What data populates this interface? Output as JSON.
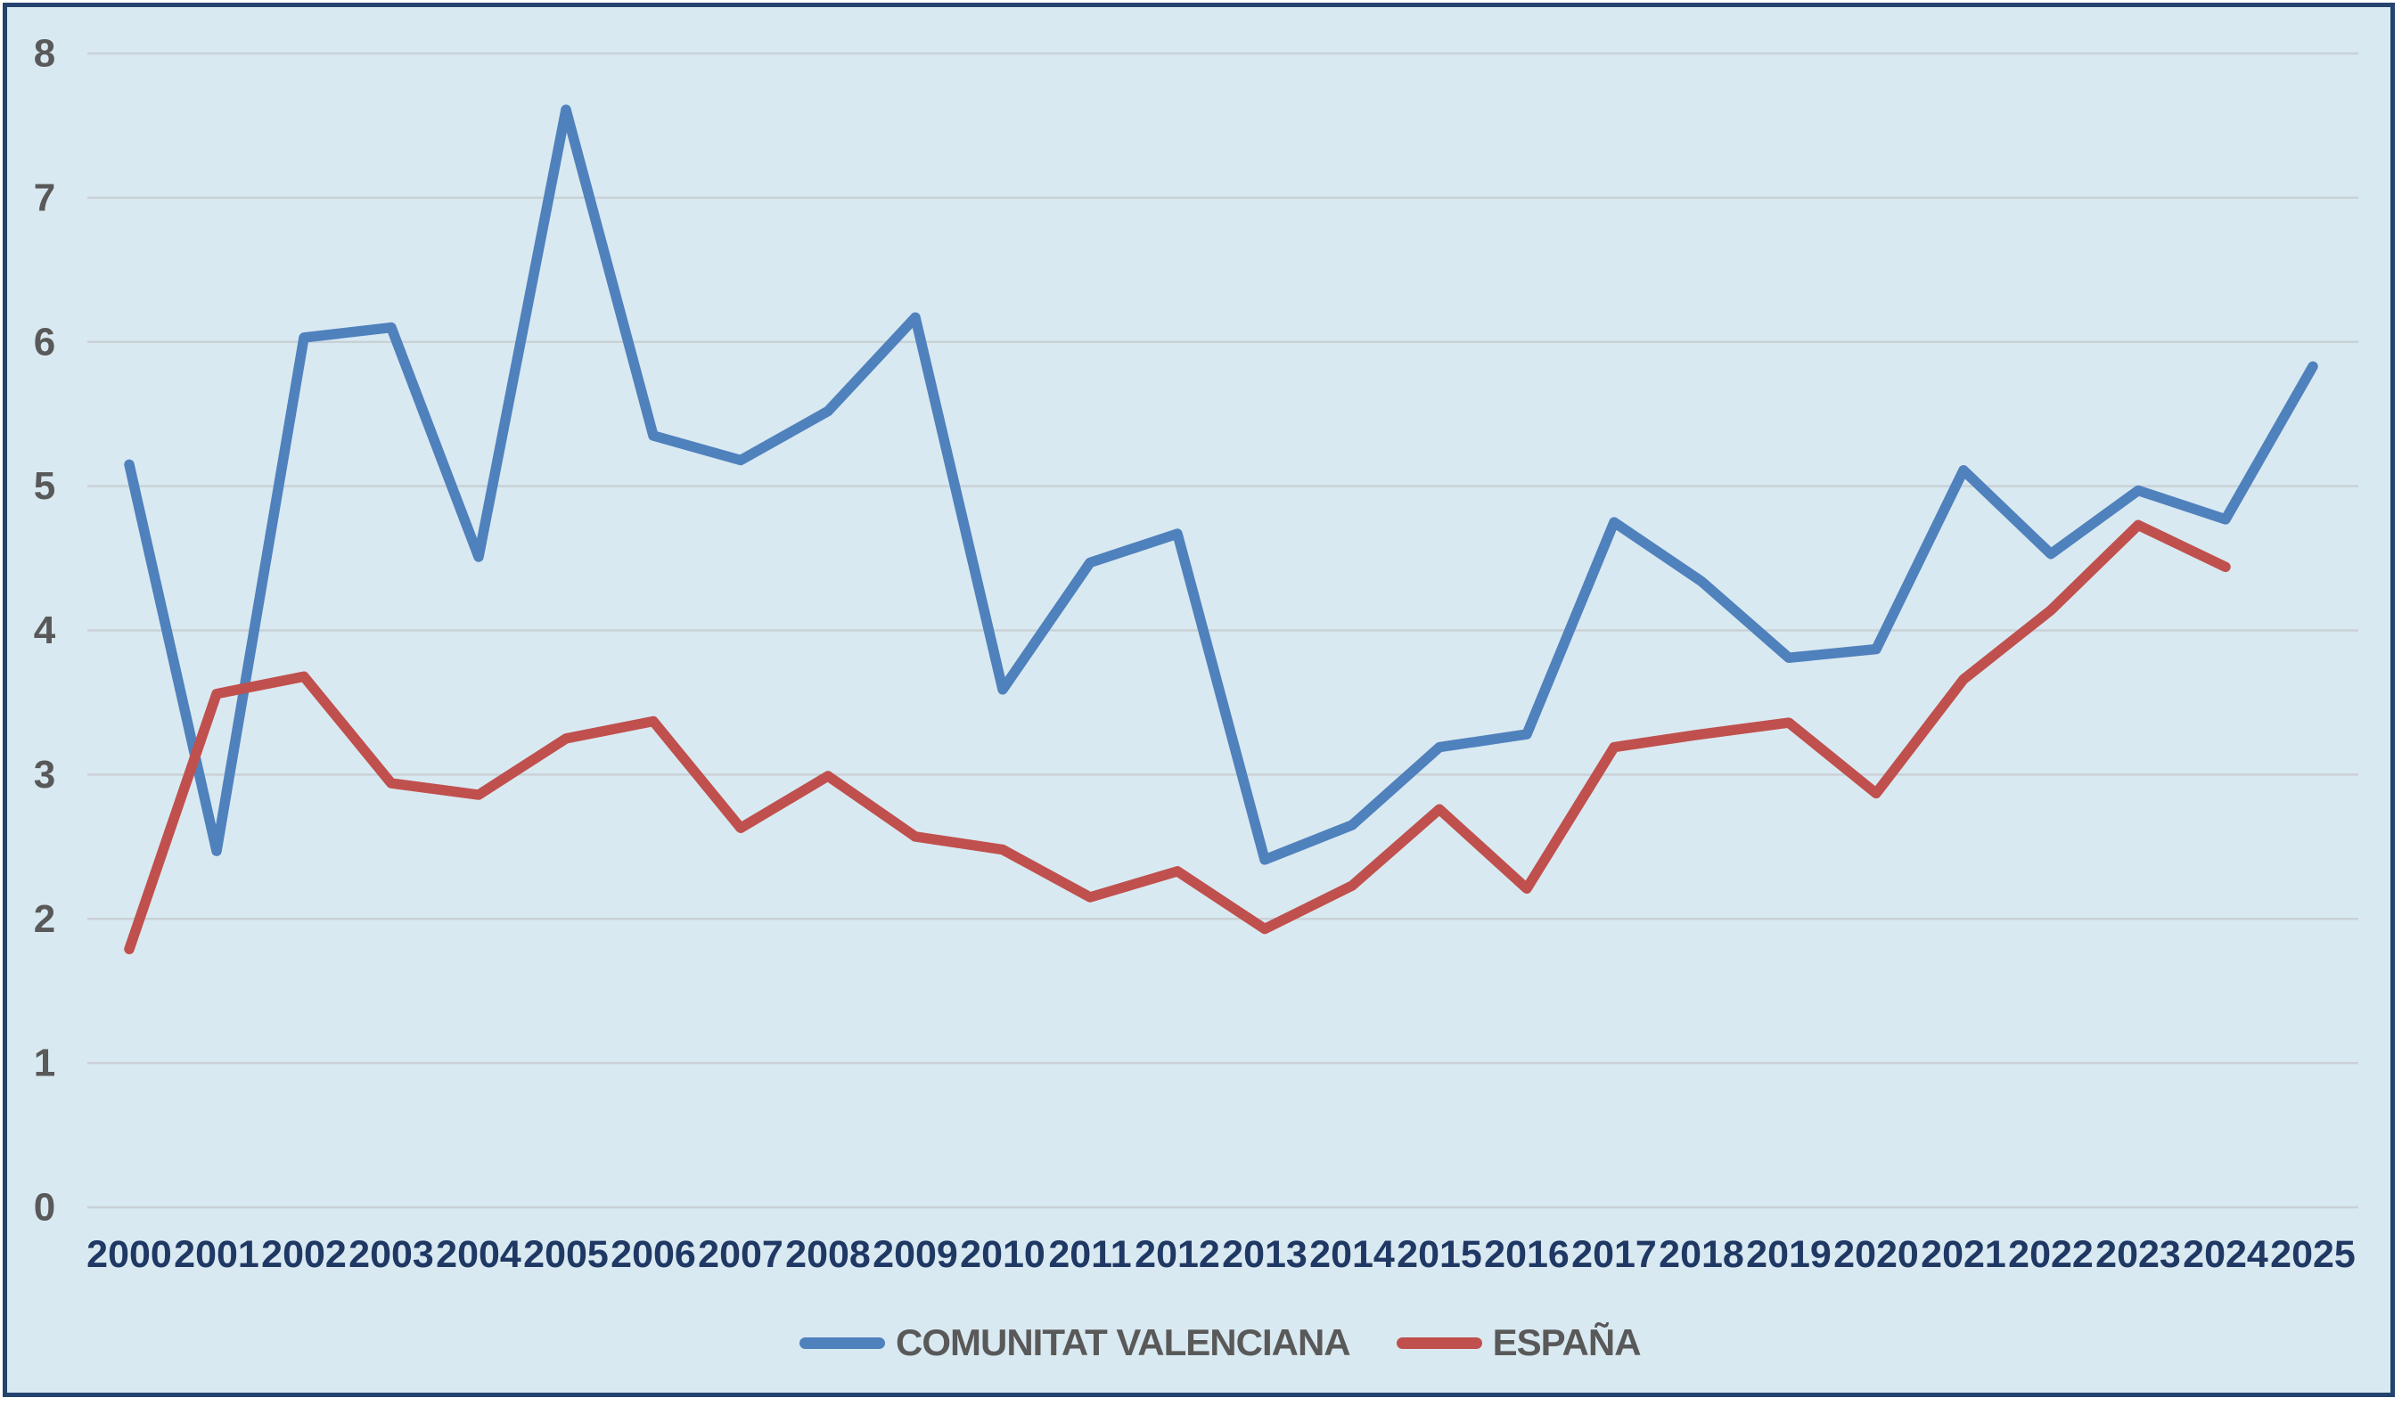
{
  "chart_data": {
    "type": "line",
    "title": "",
    "xlabel": "",
    "ylabel": "",
    "categories": [
      "2000",
      "2001",
      "2002",
      "2003",
      "2004",
      "2005",
      "2006",
      "2007",
      "2008",
      "2009",
      "2010",
      "2011",
      "2012",
      "2013",
      "2014",
      "2015",
      "2016",
      "2017",
      "2018",
      "2019",
      "2020",
      "2021",
      "2022",
      "2023",
      "2024",
      "2025"
    ],
    "series": [
      {
        "name": "COMUNITAT VALENCIANA",
        "color": "#4f81bd",
        "values": [
          5.15,
          2.47,
          6.03,
          6.1,
          4.51,
          7.61,
          5.35,
          5.18,
          5.52,
          6.17,
          3.59,
          4.47,
          4.67,
          2.41,
          2.65,
          3.19,
          3.28,
          4.75,
          4.34,
          3.81,
          3.87,
          5.11,
          4.53,
          4.97,
          4.77,
          5.83
        ]
      },
      {
        "name": "ESPAÑA",
        "color": "#c0504d",
        "values": [
          1.79,
          3.56,
          3.68,
          2.94,
          2.86,
          3.25,
          3.37,
          2.63,
          2.99,
          2.57,
          2.48,
          2.15,
          2.33,
          1.93,
          2.23,
          2.76,
          2.21,
          3.19,
          3.28,
          3.36,
          2.87,
          3.66,
          4.14,
          4.73,
          4.44,
          null
        ]
      }
    ],
    "ylim": [
      0,
      8
    ],
    "ytick_interval": 1,
    "y_ticks": [
      "0",
      "1",
      "2",
      "3",
      "4",
      "5",
      "6",
      "7",
      "8"
    ],
    "grid": "horizontal",
    "legend_position": "bottom-center"
  },
  "legend": {
    "items": [
      {
        "label": "COMUNITAT VALENCIANA",
        "color": "#4f81bd"
      },
      {
        "label": "ESPAÑA",
        "color": "#c0504d"
      }
    ]
  },
  "colors": {
    "background": "#d9e9f1",
    "frame_border": "#24436e",
    "gridline": "#c9d1d6",
    "y_tick_label": "#595959",
    "x_tick_label": "#1f3864",
    "legend_text": "#595959"
  }
}
